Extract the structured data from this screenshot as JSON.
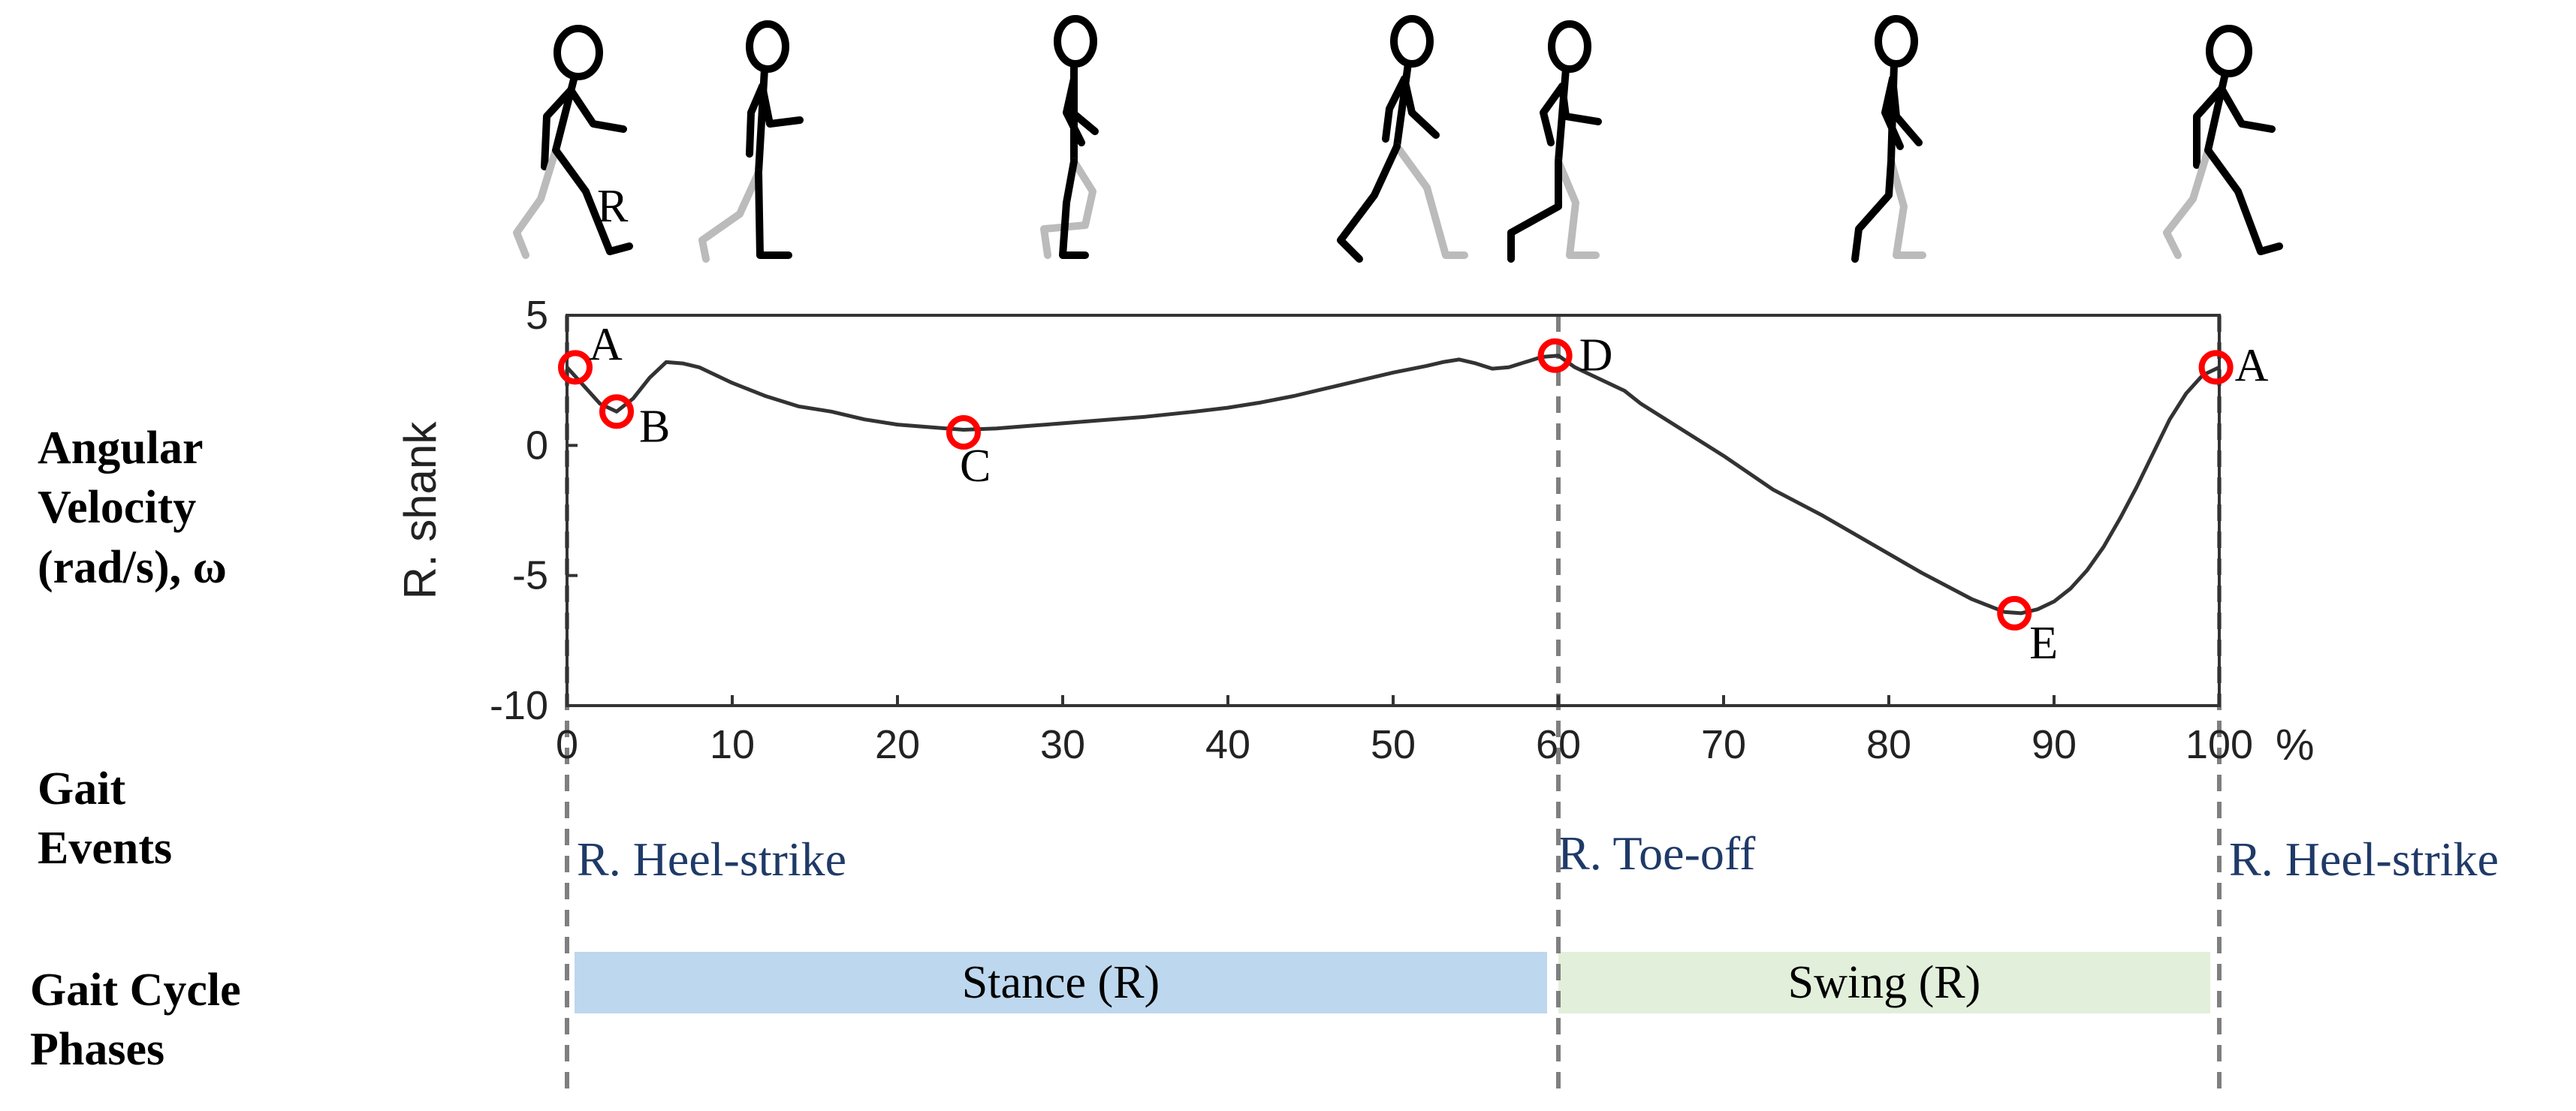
{
  "row_labels": {
    "angular_velocity": [
      "Angular",
      "Velocity",
      "(rad/s), ω"
    ],
    "gait_events": [
      "Gait",
      "Events"
    ],
    "gait_phases": [
      "Gait Cycle",
      "Phases"
    ]
  },
  "figure_marker": "R",
  "gait_events": {
    "heel_strike_start": "R. Heel-strike",
    "toe_off": "R. Toe-off",
    "heel_strike_end": "R. Heel-strike"
  },
  "phases": {
    "stance": {
      "label": "Stance (R)",
      "color": "#bdd7ee"
    },
    "swing": {
      "label": "Swing (R)",
      "color": "#e2efda"
    }
  },
  "colors": {
    "curve": "#333333",
    "marker": "#ff0000",
    "event_line": "#7f7f7f",
    "event_text": "#1f3a68"
  },
  "chart_data": {
    "type": "line",
    "title": "",
    "xlabel": "%",
    "ylabel": "R. shank",
    "xlim": [
      0,
      100
    ],
    "ylim": [
      -10,
      5
    ],
    "xticks": [
      0,
      10,
      20,
      30,
      40,
      50,
      60,
      70,
      80,
      90,
      100
    ],
    "yticks": [
      5,
      0,
      -5,
      -10
    ],
    "x_unit_label": "%",
    "grid": false,
    "series": [
      {
        "x": [
          0,
          1,
          2,
          3,
          4,
          5,
          6,
          7,
          8,
          10,
          12,
          14,
          16,
          18,
          20,
          22,
          24,
          26,
          28,
          30,
          32,
          35,
          38,
          40,
          42,
          44,
          46,
          48,
          50,
          52,
          53,
          54,
          55,
          56,
          57,
          58,
          59,
          60,
          61,
          62,
          63,
          64,
          65,
          67,
          70,
          73,
          76,
          79,
          82,
          85,
          87,
          88,
          89,
          90,
          91,
          92,
          93,
          94,
          95,
          96,
          97,
          98,
          99,
          100
        ],
        "y": [
          3.0,
          2.3,
          1.6,
          1.3,
          1.8,
          2.6,
          3.2,
          3.15,
          3.0,
          2.4,
          1.9,
          1.5,
          1.3,
          1.0,
          0.8,
          0.7,
          0.6,
          0.65,
          0.75,
          0.85,
          0.95,
          1.1,
          1.3,
          1.45,
          1.65,
          1.9,
          2.2,
          2.5,
          2.8,
          3.05,
          3.2,
          3.3,
          3.15,
          2.95,
          3.0,
          3.2,
          3.4,
          3.45,
          3.0,
          2.7,
          2.4,
          2.1,
          1.6,
          0.8,
          -0.4,
          -1.7,
          -2.7,
          -3.8,
          -4.9,
          -5.9,
          -6.4,
          -6.45,
          -6.3,
          -6.0,
          -5.5,
          -4.8,
          -3.9,
          -2.8,
          -1.6,
          -0.3,
          1.0,
          2.0,
          2.7,
          3.0
        ]
      }
    ],
    "markers": [
      {
        "label": "A",
        "x": 0.5,
        "y": 3.0
      },
      {
        "label": "B",
        "x": 3.0,
        "y": 1.3
      },
      {
        "label": "C",
        "x": 24.0,
        "y": 0.5
      },
      {
        "label": "D",
        "x": 59.8,
        "y": 3.45
      },
      {
        "label": "E",
        "x": 87.6,
        "y": -6.45
      },
      {
        "label": "A",
        "x": 99.8,
        "y": 3.0
      }
    ],
    "event_lines_x": [
      0,
      60,
      100
    ]
  }
}
